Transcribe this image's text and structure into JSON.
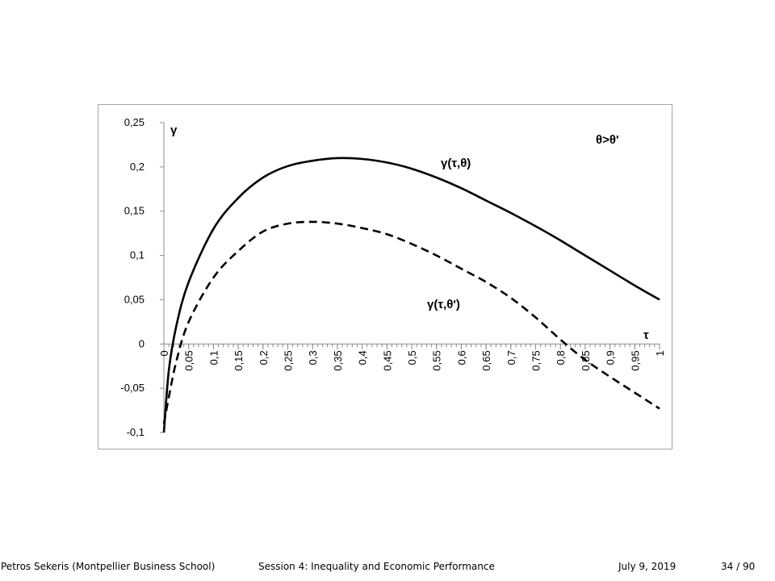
{
  "chart_data": {
    "type": "line",
    "title": "",
    "xlabel": "τ",
    "ylabel": "γ",
    "xlim": [
      0,
      1
    ],
    "ylim": [
      -0.1,
      0.25
    ],
    "yticks": [
      "0,25",
      "0,2",
      "0,15",
      "0,1",
      "0,05",
      "0",
      "-0,05",
      "-0,1"
    ],
    "ytick_values": [
      0.25,
      0.2,
      0.15,
      0.1,
      0.05,
      0,
      -0.05,
      -0.1
    ],
    "xticks": [
      "0",
      "0,05",
      "0,1",
      "0,15",
      "0,2",
      "0,25",
      "0,3",
      "0,35",
      "0,4",
      "0,45",
      "0,5",
      "0,55",
      "0,6",
      "0,65",
      "0,7",
      "0,75",
      "0,8",
      "0,85",
      "0,9",
      "0,95",
      "1"
    ],
    "xtick_values": [
      0,
      0.05,
      0.1,
      0.15,
      0.2,
      0.25,
      0.3,
      0.35,
      0.4,
      0.45,
      0.5,
      0.55,
      0.6,
      0.65,
      0.7,
      0.75,
      0.8,
      0.85,
      0.9,
      0.95,
      1
    ],
    "grid": false,
    "legend": "none",
    "annotations": [
      "θ>θ'"
    ],
    "series": [
      {
        "name": "γ(τ,θ)",
        "style": "solid",
        "color": "#000000",
        "x": [
          0.0,
          0.01,
          0.025,
          0.05,
          0.1,
          0.15,
          0.2,
          0.25,
          0.3,
          0.35,
          0.4,
          0.45,
          0.5,
          0.55,
          0.6,
          0.65,
          0.7,
          0.75,
          0.8,
          0.85,
          0.9,
          0.95,
          1.0
        ],
        "y": [
          -0.1,
          -0.03,
          0.02,
          0.07,
          0.13,
          0.165,
          0.188,
          0.201,
          0.207,
          0.21,
          0.209,
          0.205,
          0.198,
          0.188,
          0.176,
          0.162,
          0.148,
          0.133,
          0.117,
          0.1,
          0.083,
          0.066,
          0.05
        ]
      },
      {
        "name": "γ(τ,θ')",
        "style": "dashed",
        "color": "#000000",
        "x": [
          0.0,
          0.01,
          0.025,
          0.05,
          0.1,
          0.15,
          0.2,
          0.25,
          0.3,
          0.35,
          0.4,
          0.45,
          0.5,
          0.55,
          0.6,
          0.65,
          0.7,
          0.75,
          0.8,
          0.85,
          0.9,
          0.95,
          1.0
        ],
        "y": [
          -0.09,
          -0.06,
          -0.02,
          0.025,
          0.075,
          0.105,
          0.127,
          0.136,
          0.138,
          0.136,
          0.131,
          0.124,
          0.113,
          0.1,
          0.085,
          0.07,
          0.052,
          0.03,
          0.005,
          -0.018,
          -0.037,
          -0.055,
          -0.073
        ]
      }
    ]
  },
  "footer": {
    "author": "Petros Sekeris (Montpellier Business School)",
    "title": "Session 4: Inequality and Economic Performance",
    "date": "July 9, 2019",
    "page": "34 / 90"
  }
}
